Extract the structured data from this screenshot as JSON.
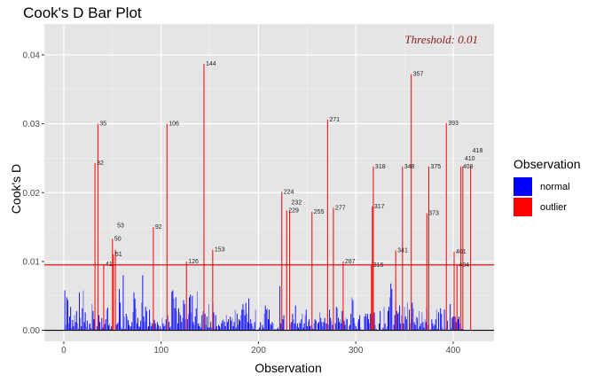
{
  "chart_data": {
    "type": "bar",
    "title": "Cook's D Bar Plot",
    "xlabel": "Observation",
    "ylabel": "Cook's D",
    "xlim": [
      -20,
      442
    ],
    "ylim": [
      -0.0016,
      0.0445
    ],
    "x_ticks": [
      0,
      100,
      200,
      300,
      400
    ],
    "x_tick_labels": [
      "0",
      "100",
      "200",
      "300",
      "400"
    ],
    "y_ticks": [
      0,
      0.01,
      0.02,
      0.03,
      0.04
    ],
    "y_tick_labels": [
      "0.00",
      "0.01",
      "0.02",
      "0.03",
      "0.04"
    ],
    "grid": true,
    "threshold": {
      "value": 0.0095,
      "label": "Threshold: 0.01",
      "color": "#cc0000"
    },
    "legend": {
      "title": "Observation",
      "placement": "right",
      "entries": [
        {
          "label": "normal",
          "color": "#0000ff"
        },
        {
          "label": "outlier",
          "color": "#ff0000"
        }
      ]
    },
    "outliers": [
      {
        "obs": 32,
        "value": 0.0243,
        "label": "32"
      },
      {
        "obs": 35,
        "value": 0.03,
        "label": "35"
      },
      {
        "obs": 41,
        "value": 0.0096,
        "label": "41"
      },
      {
        "obs": 50,
        "value": 0.0133,
        "label": "50"
      },
      {
        "obs": 51,
        "value": 0.011,
        "label": "51"
      },
      {
        "obs": 53,
        "value": 0.0117,
        "label": "53"
      },
      {
        "obs": 92,
        "value": 0.015,
        "label": "92"
      },
      {
        "obs": 106,
        "value": 0.03,
        "label": "106"
      },
      {
        "obs": 126,
        "value": 0.01,
        "label": "126"
      },
      {
        "obs": 144,
        "value": 0.0387,
        "label": "144"
      },
      {
        "obs": 153,
        "value": 0.0117,
        "label": "153"
      },
      {
        "obs": 224,
        "value": 0.0201,
        "label": "224"
      },
      {
        "obs": 229,
        "value": 0.0174,
        "label": "229"
      },
      {
        "obs": 232,
        "value": 0.0174,
        "label": "232"
      },
      {
        "obs": 255,
        "value": 0.0172,
        "label": "255"
      },
      {
        "obs": 271,
        "value": 0.0306,
        "label": "271"
      },
      {
        "obs": 277,
        "value": 0.0178,
        "label": "277"
      },
      {
        "obs": 287,
        "value": 0.01,
        "label": "287"
      },
      {
        "obs": 316,
        "value": 0.0095,
        "label": "316"
      },
      {
        "obs": 317,
        "value": 0.018,
        "label": "317"
      },
      {
        "obs": 318,
        "value": 0.0238,
        "label": "318"
      },
      {
        "obs": 341,
        "value": 0.0116,
        "label": "341"
      },
      {
        "obs": 348,
        "value": 0.0238,
        "label": "348"
      },
      {
        "obs": 357,
        "value": 0.0372,
        "label": "357"
      },
      {
        "obs": 373,
        "value": 0.017,
        "label": "373"
      },
      {
        "obs": 375,
        "value": 0.0238,
        "label": "375"
      },
      {
        "obs": 393,
        "value": 0.0301,
        "label": "393"
      },
      {
        "obs": 401,
        "value": 0.0114,
        "label": "401"
      },
      {
        "obs": 404,
        "value": 0.0095,
        "label": "404"
      },
      {
        "obs": 408,
        "value": 0.0238,
        "label": "408"
      },
      {
        "obs": 410,
        "value": 0.0238,
        "label": "410"
      },
      {
        "obs": 418,
        "value": 0.0238,
        "label": "418"
      }
    ],
    "normal_values": [
      0.0058,
      0.0008,
      0.0048,
      0.0044,
      0.001,
      0.002,
      0.0034,
      0.0004,
      0.0015,
      0.0006,
      0.0022,
      0.0012,
      0.0028,
      0.001,
      0.0002,
      0.0055,
      0.0018,
      0.0006,
      0.0032,
      0.0058,
      0.0012,
      0.0026,
      0.0005,
      0.0014,
      0.0001,
      0.0009,
      0.001,
      0.0003,
      0.0038,
      0.0028,
      0.0016,
      0.0,
      0.0,
      0.0006,
      0.0,
      0.0022,
      0.0012,
      0.0002,
      0.0018,
      0.0004,
      0.0,
      0.0009,
      0.0016,
      0.003,
      0.0033,
      0.0007,
      0.001,
      0.0002,
      0.0006,
      0.0,
      0.0,
      0.0,
      0.001,
      0.0008,
      0.001,
      0.0012,
      0.006,
      0.004,
      0.0005,
      0.0002,
      0.008,
      0.002,
      0.0002,
      0.0024,
      0.002,
      0.0015,
      0.0008,
      0.0004,
      0.0006,
      0.0012,
      0.0026,
      0.0055,
      0.0046,
      0.0032,
      0.001,
      0.0018,
      0.0006,
      0.0005,
      0.0014,
      0.004,
      0.008,
      0.002,
      0.0012,
      0.0034,
      0.0028,
      0.0004,
      0.0006,
      0.003,
      0.0012,
      0.0006,
      0.001,
      0.0,
      0.0015,
      0.001,
      0.0004,
      0.0012,
      0.0008,
      0.0002,
      0.0006,
      0.0002,
      0.0018,
      0.001,
      0.0006,
      0.0008,
      0.0016,
      0.0,
      0.0022,
      0.0012,
      0.0004,
      0.0006,
      0.0056,
      0.0058,
      0.0046,
      0.0032,
      0.0048,
      0.0028,
      0.001,
      0.0032,
      0.0026,
      0.0022,
      0.0012,
      0.0018,
      0.0044,
      0.0038,
      0.0016,
      0.0,
      0.0016,
      0.0024,
      0.0048,
      0.0052,
      0.0026,
      0.005,
      0.0012,
      0.0008,
      0.002,
      0.0032,
      0.0056,
      0.001,
      0.0006,
      0.001,
      0.0004,
      0.0022,
      0.0028,
      0.0,
      0.0024,
      0.0008,
      0.002,
      0.0004,
      0.0038,
      0.0004,
      0.0012,
      0.0004,
      0.004,
      0.0026,
      0.0002,
      0.0022,
      0.0006,
      0.0,
      0.0008,
      0.0006,
      0.0004,
      0.001,
      0.0014,
      0.0016,
      0.0012,
      0.0006,
      0.0022,
      0.0012,
      0.0016,
      0.0,
      0.002,
      0.0014,
      0.0018,
      0.0006,
      0.0012,
      0.003,
      0.0004,
      0.0024,
      0.0008,
      0.0016,
      0.0014,
      0.0022,
      0.003,
      0.0038,
      0.003,
      0.0022,
      0.004,
      0.0024,
      0.0012,
      0.0046,
      0.001,
      0.0016,
      0.001,
      0.0006,
      0.0002,
      0.0012,
      0.003,
      0.0,
      0.0,
      0.0002,
      0.0004,
      0.0012,
      0.0,
      0.0008,
      0.0004,
      0.0024,
      0.0036,
      0.003,
      0.0032,
      0.0016,
      0.003,
      0.001,
      0.0008,
      0.0012,
      0.001,
      0.0,
      0.0002,
      0.0,
      0.0002,
      0.0004,
      0.0,
      0.0064,
      0.001,
      0.0004,
      0.0016,
      0.0022,
      0.0,
      0.0,
      0.0002,
      0.0,
      0.0,
      0.0006,
      0.001,
      0.0012,
      0.0024,
      0.0016,
      0.001,
      0.0036,
      0.0006,
      0.001,
      0.0004,
      0.0012,
      0.001,
      0.0016,
      0.0024,
      0.0004,
      0.001,
      0.0022,
      0.003,
      0.0006,
      0.0012,
      0.0016,
      0.0006,
      0.0008,
      0.0004,
      0.0002,
      0.001,
      0.0016,
      0.0014,
      0.0,
      0.001,
      0.0012,
      0.0026,
      0.0018,
      0.0012,
      0.0006,
      0.0012,
      0.0018,
      0.001,
      0.001,
      0.0,
      0.0008,
      0.003,
      0.0018,
      0.0014,
      0.0008,
      0.0004,
      0.0,
      0.001,
      0.0034,
      0.0032,
      0.0018,
      0.0012,
      0.0016,
      0.001,
      0.0028,
      0.0028,
      0.0014,
      0.0008,
      0.0018,
      0.0016,
      0.0,
      0.0006,
      0.0008,
      0.0024,
      0.0048,
      0.0044,
      0.0018,
      0.001,
      0.0006,
      0.0002,
      0.0012,
      0.0016,
      0.0022,
      0.0004,
      0.0,
      0.0,
      0.0,
      0.002,
      0.0024,
      0.002,
      0.0024,
      0.0016,
      0.001,
      0.0024,
      0.0024,
      0.002,
      0.0008,
      0.0026,
      0.0008,
      0.0002,
      0.0,
      0.0,
      0.001,
      0.0028,
      0.0002,
      0.0,
      0.0004,
      0.0034,
      0.001,
      0.0002,
      0.0006,
      0.0028,
      0.0034,
      0.0048,
      0.0068,
      0.006,
      0.0,
      0.0008,
      0.0022,
      0.004,
      0.0028,
      0.0024,
      0.0026,
      0.0036,
      0.001,
      0.0022,
      0.0012,
      0.001,
      0.0034,
      0.002,
      0.0016,
      0.004,
      0.0,
      0.003,
      0.001,
      0.0016,
      0.004,
      0.0032,
      0.0012,
      0.0008,
      0.002,
      0.0018,
      0.0002,
      0.0028,
      0.0006,
      0.001,
      0.0026,
      0.0012,
      0.0004,
      0.0016,
      0.0012,
      0.0032,
      0.0008,
      0.0024,
      0.0,
      0.0002,
      0.0016,
      0.001,
      0.0006,
      0.0008,
      0.0016,
      0.003,
      0.0002,
      0.0026,
      0.0,
      0.0032,
      0.0024,
      0.0004,
      0.0,
      0.003,
      0.0002,
      0.0004,
      0.0014,
      0.0,
      0.0,
      0.0038,
      0.0004,
      0.0018,
      0.002,
      0.003,
      0.002,
      0.0012,
      0.0002,
      0.0016,
      0.002,
      0.001,
      0.0004,
      0.0002,
      0.0,
      0.0,
      0.0,
      0.0,
      0.0,
      0.0,
      0.0,
      0.0,
      0.0,
      0.0,
      0.0
    ]
  }
}
